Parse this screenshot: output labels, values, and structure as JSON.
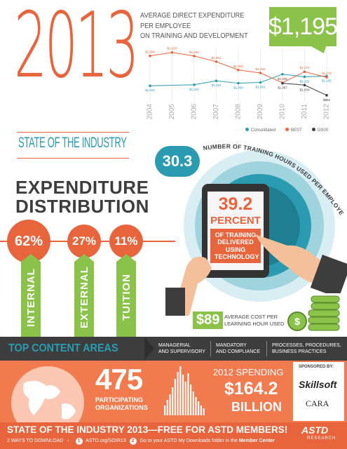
{
  "header": {
    "year": "2013",
    "subtitle": "STATE OF THE INDUSTRY"
  },
  "expenditure": {
    "title_line1": "EXPENDITURE",
    "title_line2": "DISTRIBUTION",
    "items": [
      {
        "label": "INTERNAL",
        "percent": "62%"
      },
      {
        "label": "EXTERNAL",
        "percent": "27%"
      },
      {
        "label": "TUITION",
        "percent": "11%"
      }
    ]
  },
  "chart": {
    "title_line1": "AVERAGE DIRECT EXPENDITURE PER EMPLOYEE",
    "title_line2": "ON TRAINING AND DEVELOPMENT",
    "highlight": "$1,195"
  },
  "chart_data": {
    "type": "line",
    "title": "AVERAGE DIRECT EXPENDITURE PER EMPLOYEE ON TRAINING AND DEVELOPMENT",
    "x": [
      "2004",
      "2005",
      "2006",
      "2007",
      "2008",
      "2009",
      "2010",
      "2011",
      "2012"
    ],
    "series": [
      {
        "name": "Consolidated",
        "color": "#2a9bb0",
        "values": [
          1022,
          null,
          1040,
          1110,
          1068,
          1081,
          1228,
          1182,
          1195
        ]
      },
      {
        "name": "BEST",
        "color": "#e8643c",
        "values": [
          1554,
          1616,
          1551,
          1451,
          1303,
          1250,
          1075,
          1272,
          1173
        ]
      },
      {
        "name": "GS00",
        "color": "#3d3d3d",
        "values": [
          null,
          null,
          null,
          null,
          null,
          null,
          1067,
          1034,
          852
        ]
      }
    ],
    "point_labels": {
      "Consolidated": [
        "$1,022",
        "",
        "$1,040",
        "$1,110",
        "$1,068",
        "$1,081",
        "$1,228",
        "$1,182",
        "$1,195"
      ],
      "BEST": [
        "$1,554",
        "$1,616",
        "$1,551",
        "$1,451",
        "$1,303",
        "$1,250",
        "$1,075",
        "$1,272",
        "$1,173"
      ],
      "GS00": [
        "",
        "",
        "",
        "",
        "",
        "",
        "$1,067",
        "$1,034",
        "$852"
      ]
    },
    "legend_position": "bottom-right"
  },
  "training": {
    "hours": "30.3",
    "hours_label": "NUMBER OF TRAINING HOURS USED PER EMPLOYEE",
    "tech_percent": "39.2",
    "tech_word": "PERCENT",
    "tech_desc": [
      "OF TRAINING",
      "DELIVERED",
      "USING",
      "TECHNOLOGY"
    ],
    "cost": "$89",
    "cost_label": [
      "AVERAGE COST PER",
      "LEARNING HOUR USED"
    ]
  },
  "content_areas": {
    "title": "TOP CONTENT AREAS",
    "items": [
      [
        "MANAGERIAL",
        "AND SUPERVISORY"
      ],
      [
        "MANDATORY",
        "AND COMPLIANCE"
      ],
      [
        "PROCESSES, PROCEDURES,",
        "BUSINESS PRACTICES"
      ]
    ]
  },
  "stats": {
    "organizations": "475",
    "organizations_label": [
      "PARTICIPATING",
      "ORGANIZATIONS"
    ],
    "spending_title": "2012 SPENDING",
    "spending_amount": "$164.2",
    "spending_unit": "BILLION"
  },
  "sponsors": {
    "label": "SPONSORED BY:",
    "names": [
      "Skillsoft",
      "CARA"
    ]
  },
  "footer": {
    "title": "STATE OF THE INDUSTRY 2013—FREE FOR ASTD MEMBERS!",
    "ways": "2 WAYS TO DOWNLOAD",
    "way1": "ASTD.org/SOIR13",
    "way2_prefix": "Go to your ASTD My Downloads folder in the",
    "way2_link": "Member Center",
    "brand": "ASTD",
    "brand_sub": "RESEARCH"
  },
  "colors": {
    "orange": "#e8643c",
    "teal": "#2a9bb0",
    "green": "#8bc34a",
    "dark": "#3d3d3d"
  }
}
